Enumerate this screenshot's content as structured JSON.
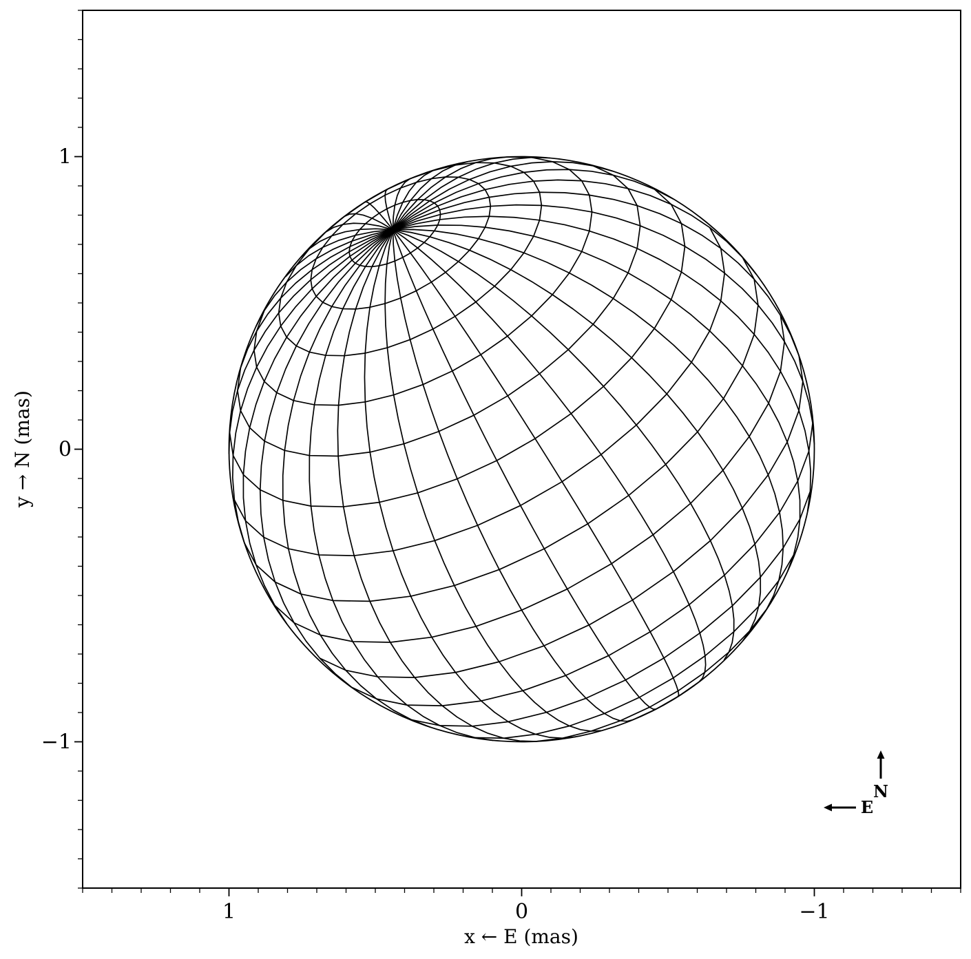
{
  "chart_data": {
    "type": "line",
    "subtype": "projected stellar surface wireframe (latitude/longitude grid of a rotated sphere)",
    "xlabel": "x ← E (mas)",
    "ylabel": "y → N (mas)",
    "xlim": [
      1.5,
      -1.5
    ],
    "ylim": [
      -1.5,
      1.5
    ],
    "x_inverted": true,
    "x_ticks": [
      1,
      0,
      -1
    ],
    "x_tick_labels": [
      "1",
      "0",
      "−1"
    ],
    "y_ticks": [
      1,
      0,
      -1
    ],
    "y_tick_labels": [
      "1",
      "0",
      "−1"
    ],
    "minor_tick_step": 0.1,
    "grid": false,
    "legend": "none",
    "star": {
      "center": [
        0.0,
        0.0
      ],
      "radius_mas": 1.0,
      "pole_projected_position": [
        0.44,
        0.75
      ],
      "latitude_lines": 17,
      "longitude_lines": 36
    },
    "compass": {
      "position": "bottom-right",
      "north_label": "N",
      "east_label": "E"
    },
    "line_color": "#000000"
  }
}
